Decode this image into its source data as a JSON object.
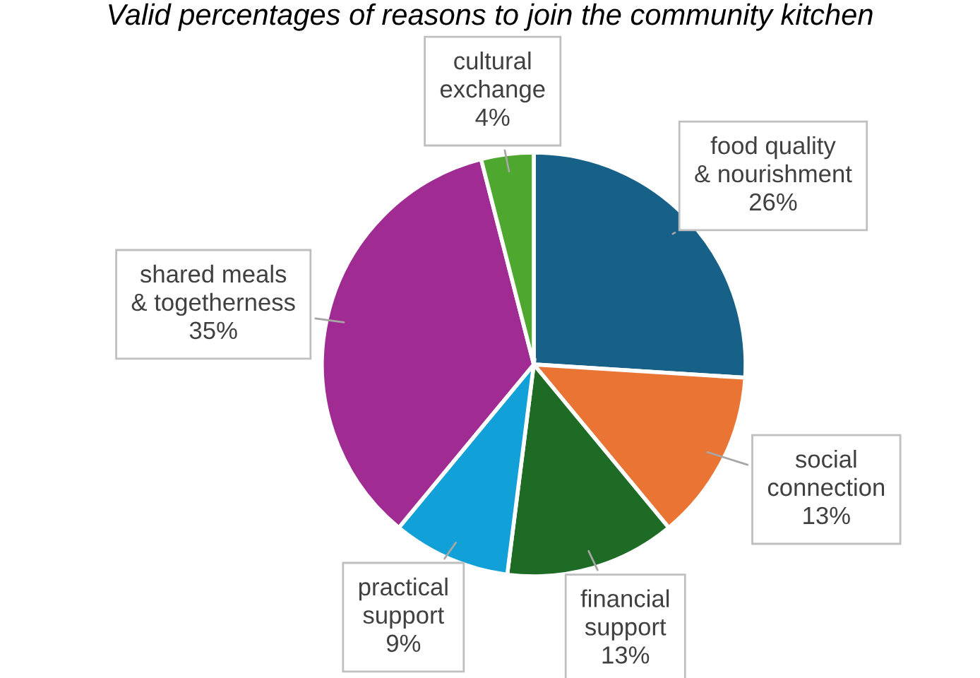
{
  "chart_data": {
    "type": "pie",
    "title": "Valid percentages of reasons to join the community kitchen",
    "categories": [
      "food quality & nourishment",
      "social connection",
      "financial support",
      "practical support",
      "shared meals & togetherness",
      "cultural exchange"
    ],
    "values": [
      26,
      13,
      13,
      9,
      35,
      4
    ],
    "colors": [
      "#176087",
      "#ea7433",
      "#1e6b25",
      "#12a0d8",
      "#a02b93",
      "#4ea72e"
    ],
    "value_labels": [
      "26%",
      "13%",
      "13%",
      "9%",
      "35%",
      "4%"
    ],
    "legend": false
  }
}
